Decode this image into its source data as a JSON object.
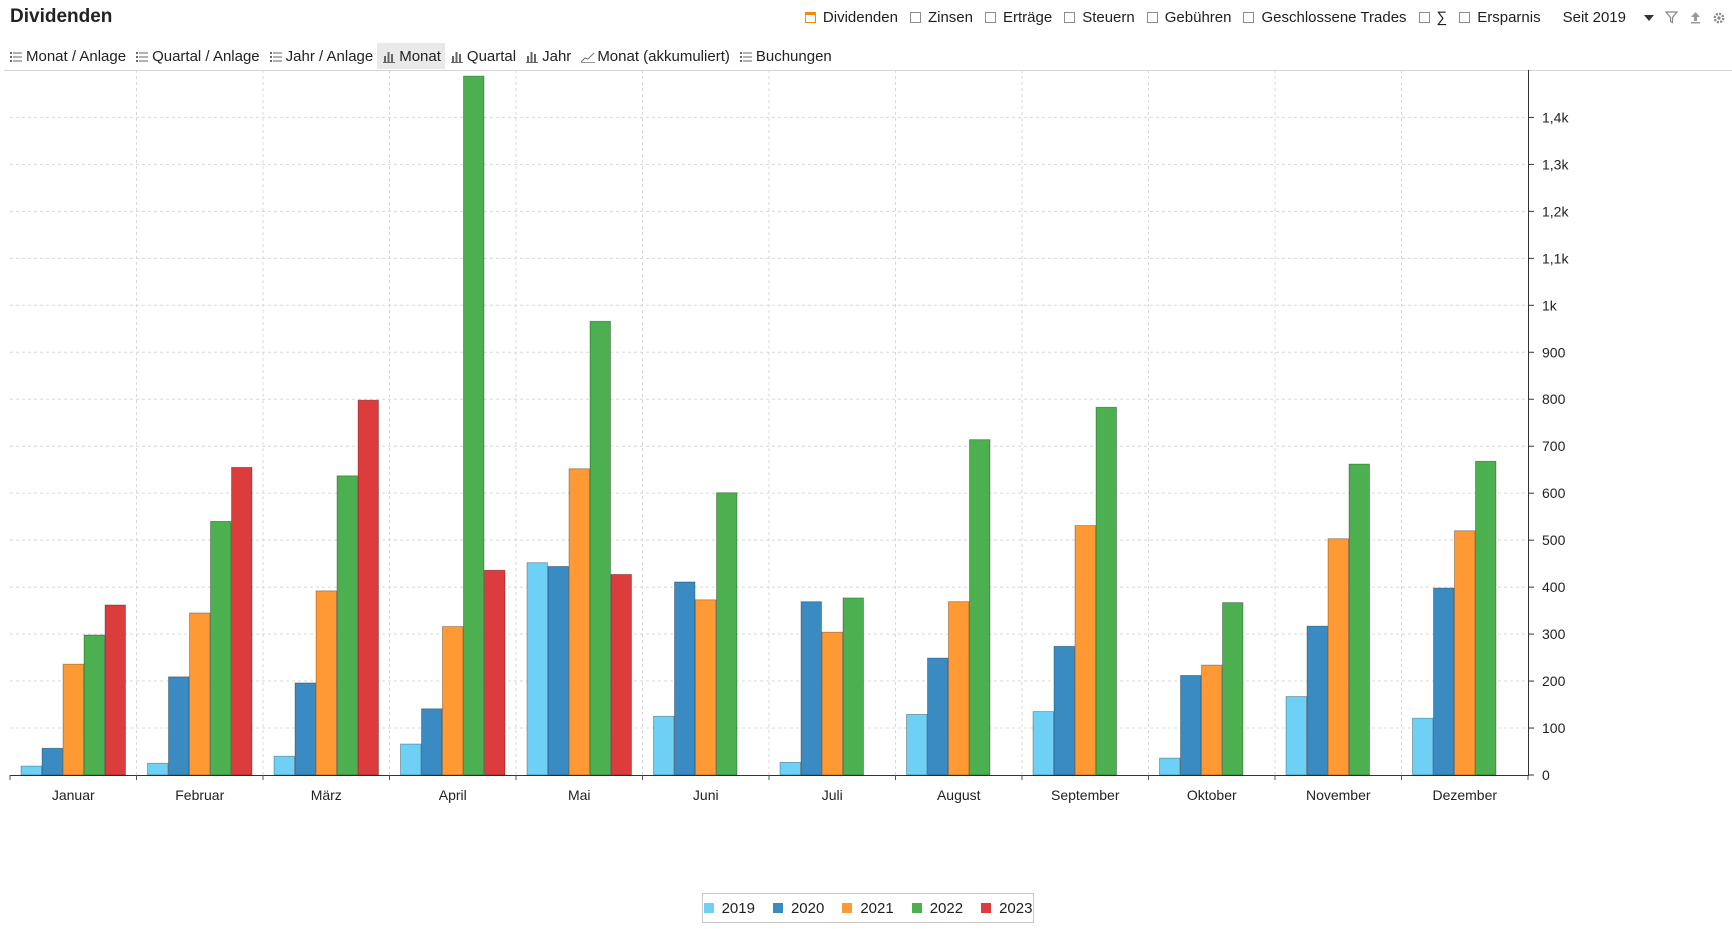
{
  "header": {
    "title": "Dividenden",
    "filters": [
      {
        "label": "Dividenden",
        "checked": true
      },
      {
        "label": "Zinsen",
        "checked": false
      },
      {
        "label": "Erträge",
        "checked": false
      },
      {
        "label": "Steuern",
        "checked": false
      },
      {
        "label": "Gebühren",
        "checked": false
      },
      {
        "label": "Geschlossene Trades",
        "checked": false
      },
      {
        "label": "∑",
        "checked": false
      },
      {
        "label": "Ersparnis",
        "checked": false
      }
    ],
    "period": "Seit 2019",
    "icons": [
      "filter-icon",
      "export-icon",
      "settings-icon"
    ]
  },
  "tabs": [
    {
      "label": "Monat / Anlage",
      "icon": "list-icon",
      "active": false
    },
    {
      "label": "Quartal / Anlage",
      "icon": "list-icon",
      "active": false
    },
    {
      "label": "Jahr / Anlage",
      "icon": "list-icon",
      "active": false
    },
    {
      "label": "Monat",
      "icon": "bar-chart-icon",
      "active": true
    },
    {
      "label": "Quartal",
      "icon": "bar-chart-icon",
      "active": false
    },
    {
      "label": "Jahr",
      "icon": "bar-chart-icon",
      "active": false
    },
    {
      "label": "Monat (akkumuliert)",
      "icon": "line-chart-icon",
      "active": false
    },
    {
      "label": "Buchungen",
      "icon": "list-icon",
      "active": false
    }
  ],
  "chart_data": {
    "type": "bar",
    "title": "",
    "xlabel": "",
    "ylabel": "",
    "categories": [
      "Januar",
      "Februar",
      "März",
      "April",
      "Mai",
      "Juni",
      "Juli",
      "August",
      "September",
      "Oktober",
      "November",
      "Dezember"
    ],
    "series": [
      {
        "name": "2019",
        "color": "#6fd0f6",
        "values": [
          19,
          25,
          40,
          66,
          452,
          125,
          27,
          129,
          135,
          36,
          167,
          121
        ]
      },
      {
        "name": "2020",
        "color": "#3a8bc2",
        "values": [
          57,
          209,
          196,
          141,
          444,
          411,
          369,
          249,
          274,
          212,
          317,
          398
        ]
      },
      {
        "name": "2021",
        "color": "#ff9933",
        "values": [
          236,
          345,
          392,
          316,
          652,
          373,
          304,
          369,
          531,
          234,
          503,
          520
        ]
      },
      {
        "name": "2022",
        "color": "#4caf50",
        "values": [
          298,
          540,
          637,
          1488,
          966,
          601,
          377,
          714,
          783,
          367,
          662,
          668
        ]
      },
      {
        "name": "2023",
        "color": "#dd3c3c",
        "values": [
          362,
          655,
          798,
          436,
          427,
          null,
          null,
          null,
          null,
          null,
          null,
          null
        ]
      }
    ],
    "ylim": [
      0,
      1500
    ],
    "yticks": [
      0,
      100,
      200,
      300,
      400,
      500,
      600,
      700,
      800,
      900,
      1000,
      1100,
      1200,
      1300,
      1400
    ],
    "ytick_labels": [
      "0",
      "100",
      "200",
      "300",
      "400",
      "500",
      "600",
      "700",
      "800",
      "900",
      "1k",
      "1,1k",
      "1,2k",
      "1,3k",
      "1,4k"
    ],
    "y_axis_position": "right",
    "grid": true,
    "legend_position": "bottom-center"
  }
}
